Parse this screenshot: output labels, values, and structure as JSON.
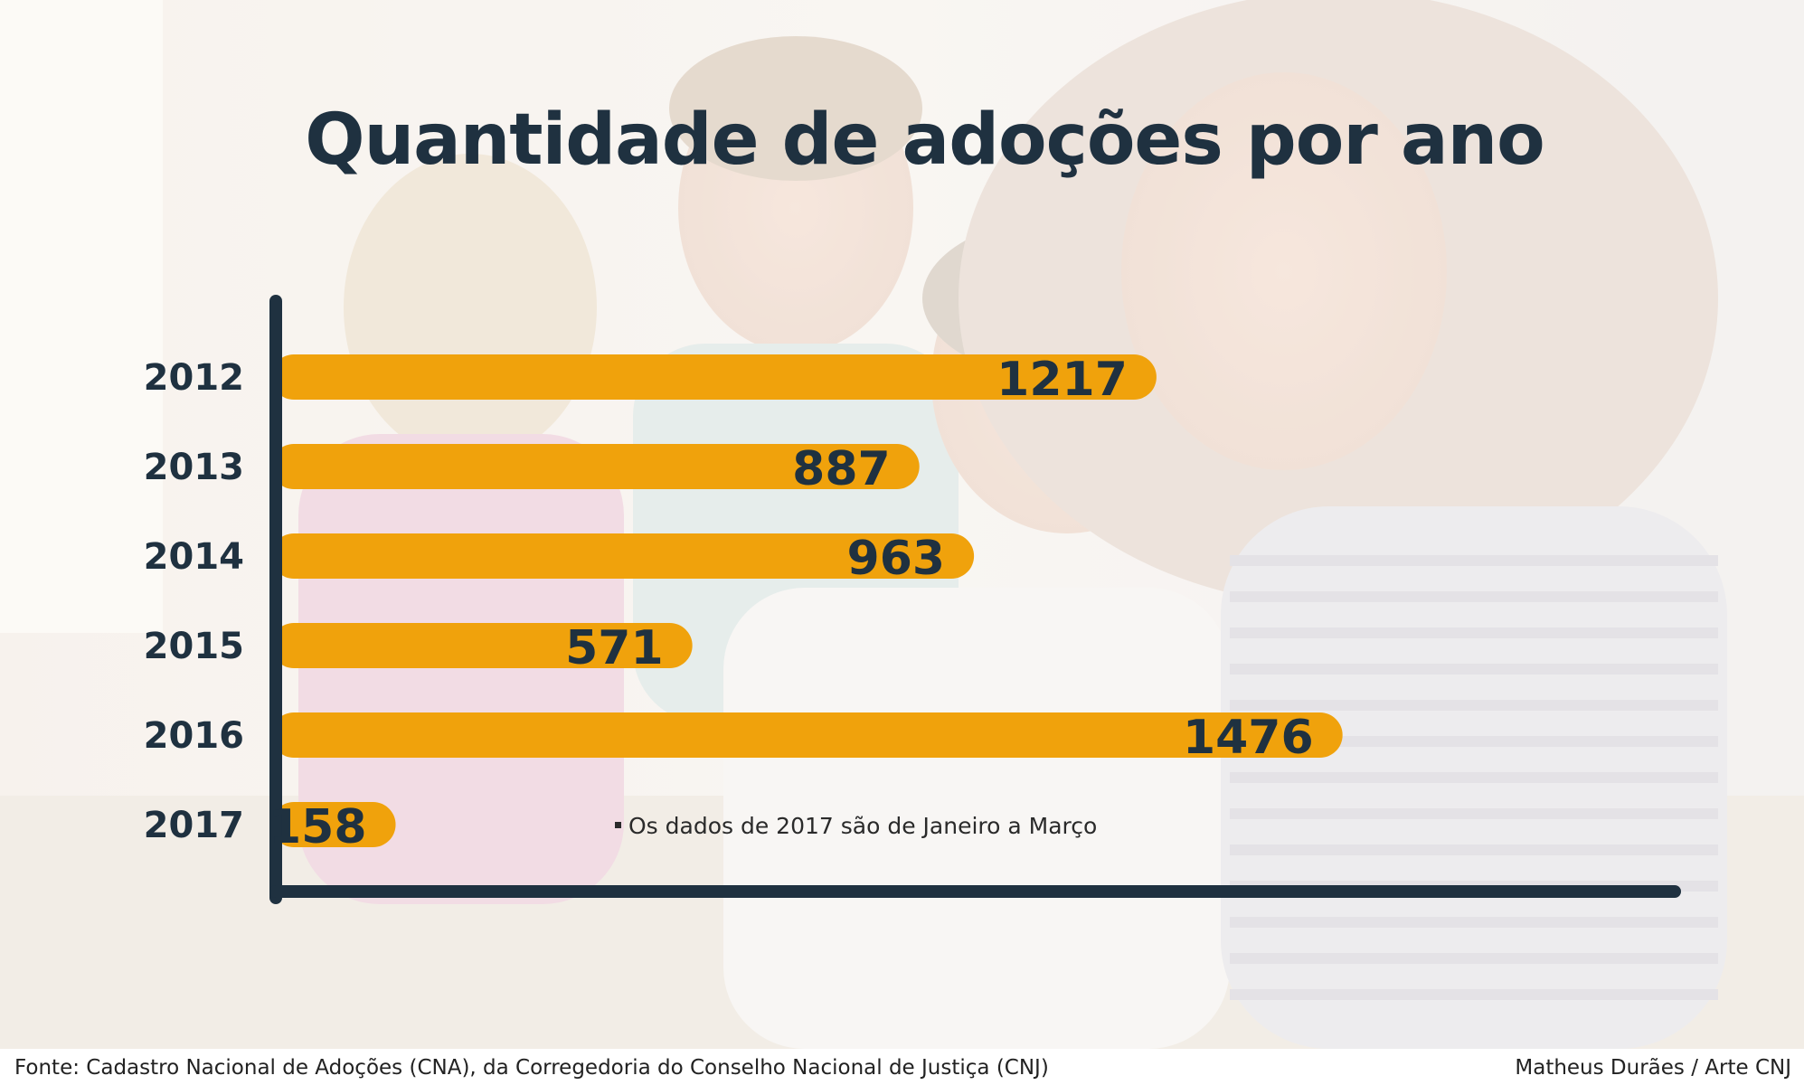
{
  "chart_data": {
    "type": "bar",
    "orientation": "horizontal",
    "title": "Quantidade de adoções por ano",
    "categories": [
      "2012",
      "2013",
      "2014",
      "2015",
      "2016",
      "2017"
    ],
    "values": [
      1217,
      887,
      963,
      571,
      1476,
      158
    ],
    "bar_color": "#f0a20c",
    "axis_color": "#1f3140",
    "label_color": "#1f3140"
  },
  "note": "Os dados de 2017 são de Janeiro a Março",
  "source": "Fonte: Cadastro Nacional de Adoções (CNA), da Corregedoria do Conselho Nacional de Justiça (CNJ)",
  "credit": "Matheus Durães / Arte CNJ"
}
